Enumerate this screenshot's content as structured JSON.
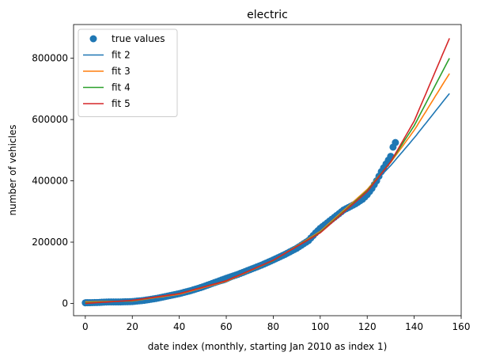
{
  "chart_data": {
    "type": "scatter",
    "title": "electric",
    "xlabel": "date index (monthly, starting Jan 2010 as index 1)",
    "ylabel": "number of vehicles",
    "xlim": [
      -5,
      160
    ],
    "ylim": [
      -40000,
      910000
    ],
    "x_ticks": [
      0,
      20,
      40,
      60,
      80,
      100,
      120,
      140,
      160
    ],
    "y_ticks": [
      0,
      200000,
      400000,
      600000,
      800000
    ],
    "grid": false,
    "legend_position": "upper-left",
    "series": [
      {
        "name": "true values",
        "kind": "scatter",
        "color": "#1f77b4",
        "x": [
          0,
          5,
          10,
          15,
          20,
          25,
          30,
          35,
          40,
          45,
          50,
          55,
          60,
          65,
          70,
          75,
          80,
          85,
          90,
          95,
          98,
          100,
          105,
          110,
          115,
          118,
          120,
          122,
          124,
          126,
          128,
          130,
          131,
          132
        ],
        "y": [
          2000,
          3000,
          5000,
          5000,
          6000,
          10000,
          16000,
          24000,
          32000,
          42000,
          54000,
          68000,
          82000,
          95000,
          110000,
          125000,
          142000,
          160000,
          180000,
          205000,
          230000,
          245000,
          275000,
          305000,
          325000,
          340000,
          355000,
          375000,
          400000,
          430000,
          455000,
          480000,
          510000,
          525000
        ]
      },
      {
        "name": "fit 2",
        "kind": "line",
        "color": "#1f77b4",
        "x": [
          0,
          20,
          40,
          60,
          80,
          100,
          120,
          130,
          140,
          155
        ],
        "y": [
          12000,
          5000,
          25000,
          70000,
          140000,
          240000,
          370000,
          450000,
          540000,
          685000
        ]
      },
      {
        "name": "fit 3",
        "kind": "line",
        "color": "#ff7f0e",
        "x": [
          0,
          20,
          40,
          60,
          80,
          100,
          120,
          130,
          140,
          155
        ],
        "y": [
          5000,
          8000,
          30000,
          72000,
          140000,
          235000,
          372000,
          460000,
          565000,
          750000
        ]
      },
      {
        "name": "fit 4",
        "kind": "line",
        "color": "#2ca02c",
        "x": [
          0,
          20,
          40,
          60,
          80,
          100,
          120,
          130,
          140,
          155
        ],
        "y": [
          2000,
          9000,
          32000,
          74000,
          140000,
          232000,
          368000,
          462000,
          580000,
          800000
        ]
      },
      {
        "name": "fit 5",
        "kind": "line",
        "color": "#d62728",
        "x": [
          0,
          20,
          40,
          60,
          80,
          100,
          120,
          130,
          140,
          155
        ],
        "y": [
          0,
          10000,
          32000,
          74000,
          141000,
          230000,
          365000,
          462000,
          595000,
          865000
        ]
      }
    ]
  }
}
